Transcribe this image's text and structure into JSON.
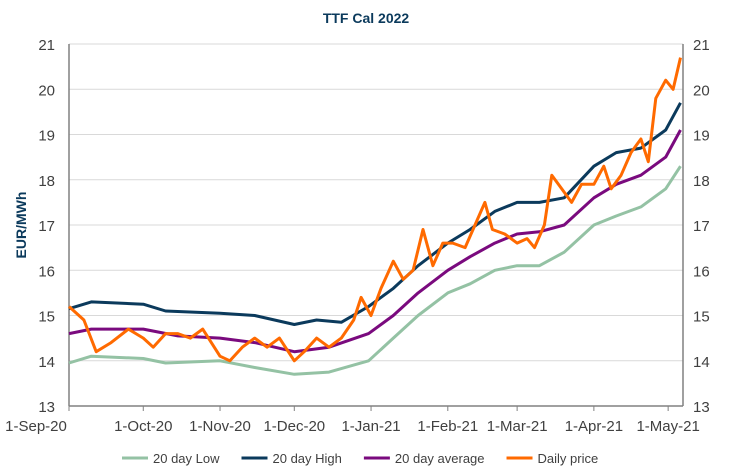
{
  "chart_data": {
    "type": "line",
    "title": "TTF Cal 2022",
    "ylabel": "EUR/MWh",
    "ylim": [
      13,
      21
    ],
    "yticks": [
      13,
      14,
      15,
      16,
      17,
      18,
      19,
      20,
      21
    ],
    "xlim": [
      "2020-09-01",
      "2021-05-07"
    ],
    "xticks": [
      {
        "date": "2020-09-01",
        "label": "1-Sep-20"
      },
      {
        "date": "2020-10-01",
        "label": "1-Oct-20"
      },
      {
        "date": "2020-11-01",
        "label": "1-Nov-20"
      },
      {
        "date": "2020-12-01",
        "label": "1-Dec-20"
      },
      {
        "date": "2021-01-01",
        "label": "1-Jan-21"
      },
      {
        "date": "2021-02-01",
        "label": "1-Feb-21"
      },
      {
        "date": "2021-03-01",
        "label": "1-Mar-21"
      },
      {
        "date": "2021-04-01",
        "label": "1-Apr-21"
      },
      {
        "date": "2021-05-01",
        "label": "1-May-21"
      }
    ],
    "grid": true,
    "legend": "bottom",
    "series": [
      {
        "name": "20 day Low",
        "color": "#94c2a4",
        "points": [
          [
            "2020-09-01",
            13.95
          ],
          [
            "2020-09-10",
            14.1
          ],
          [
            "2020-10-01",
            14.05
          ],
          [
            "2020-10-10",
            13.95
          ],
          [
            "2020-11-01",
            14.0
          ],
          [
            "2020-11-15",
            13.85
          ],
          [
            "2020-12-01",
            13.7
          ],
          [
            "2020-12-15",
            13.75
          ],
          [
            "2020-12-31",
            14.0
          ],
          [
            "2021-01-10",
            14.5
          ],
          [
            "2021-01-20",
            15.0
          ],
          [
            "2021-02-01",
            15.5
          ],
          [
            "2021-02-10",
            15.7
          ],
          [
            "2021-02-20",
            16.0
          ],
          [
            "2021-03-01",
            16.1
          ],
          [
            "2021-03-10",
            16.1
          ],
          [
            "2021-03-20",
            16.4
          ],
          [
            "2021-04-01",
            17.0
          ],
          [
            "2021-04-10",
            17.2
          ],
          [
            "2021-04-20",
            17.4
          ],
          [
            "2021-04-30",
            17.8
          ],
          [
            "2021-05-06",
            18.3
          ]
        ]
      },
      {
        "name": "20 day High",
        "color": "#0b3a5c",
        "points": [
          [
            "2020-09-01",
            15.15
          ],
          [
            "2020-09-10",
            15.3
          ],
          [
            "2020-10-01",
            15.25
          ],
          [
            "2020-10-10",
            15.1
          ],
          [
            "2020-11-01",
            15.05
          ],
          [
            "2020-11-15",
            15.0
          ],
          [
            "2020-12-01",
            14.8
          ],
          [
            "2020-12-10",
            14.9
          ],
          [
            "2020-12-20",
            14.85
          ],
          [
            "2020-12-31",
            15.2
          ],
          [
            "2021-01-10",
            15.6
          ],
          [
            "2021-01-20",
            16.1
          ],
          [
            "2021-02-01",
            16.6
          ],
          [
            "2021-02-10",
            16.9
          ],
          [
            "2021-02-20",
            17.3
          ],
          [
            "2021-03-01",
            17.5
          ],
          [
            "2021-03-10",
            17.5
          ],
          [
            "2021-03-20",
            17.6
          ],
          [
            "2021-04-01",
            18.3
          ],
          [
            "2021-04-10",
            18.6
          ],
          [
            "2021-04-20",
            18.7
          ],
          [
            "2021-04-30",
            19.1
          ],
          [
            "2021-05-06",
            19.7
          ]
        ]
      },
      {
        "name": "20 day average",
        "color": "#7a0a7e",
        "points": [
          [
            "2020-09-01",
            14.6
          ],
          [
            "2020-09-10",
            14.7
          ],
          [
            "2020-10-01",
            14.7
          ],
          [
            "2020-10-15",
            14.55
          ],
          [
            "2020-11-01",
            14.5
          ],
          [
            "2020-11-15",
            14.4
          ],
          [
            "2020-12-01",
            14.2
          ],
          [
            "2020-12-15",
            14.3
          ],
          [
            "2020-12-31",
            14.6
          ],
          [
            "2021-01-10",
            15.0
          ],
          [
            "2021-01-20",
            15.5
          ],
          [
            "2021-02-01",
            16.0
          ],
          [
            "2021-02-10",
            16.3
          ],
          [
            "2021-02-20",
            16.6
          ],
          [
            "2021-03-01",
            16.8
          ],
          [
            "2021-03-10",
            16.85
          ],
          [
            "2021-03-20",
            17.0
          ],
          [
            "2021-04-01",
            17.6
          ],
          [
            "2021-04-10",
            17.9
          ],
          [
            "2021-04-20",
            18.1
          ],
          [
            "2021-04-30",
            18.5
          ],
          [
            "2021-05-06",
            19.1
          ]
        ]
      },
      {
        "name": "Daily price",
        "color": "#ff6a00",
        "points": [
          [
            "2020-09-01",
            15.2
          ],
          [
            "2020-09-07",
            14.9
          ],
          [
            "2020-09-12",
            14.2
          ],
          [
            "2020-09-18",
            14.4
          ],
          [
            "2020-09-25",
            14.7
          ],
          [
            "2020-10-01",
            14.5
          ],
          [
            "2020-10-05",
            14.3
          ],
          [
            "2020-10-10",
            14.6
          ],
          [
            "2020-10-15",
            14.6
          ],
          [
            "2020-10-20",
            14.5
          ],
          [
            "2020-10-25",
            14.7
          ],
          [
            "2020-11-01",
            14.1
          ],
          [
            "2020-11-05",
            14.0
          ],
          [
            "2020-11-10",
            14.3
          ],
          [
            "2020-11-15",
            14.5
          ],
          [
            "2020-11-20",
            14.3
          ],
          [
            "2020-11-25",
            14.5
          ],
          [
            "2020-12-01",
            14.0
          ],
          [
            "2020-12-05",
            14.2
          ],
          [
            "2020-12-10",
            14.5
          ],
          [
            "2020-12-15",
            14.3
          ],
          [
            "2020-12-20",
            14.5
          ],
          [
            "2020-12-25",
            14.9
          ],
          [
            "2020-12-28",
            15.4
          ],
          [
            "2021-01-01",
            15.0
          ],
          [
            "2021-01-05",
            15.6
          ],
          [
            "2021-01-10",
            16.2
          ],
          [
            "2021-01-14",
            15.8
          ],
          [
            "2021-01-18",
            16.0
          ],
          [
            "2021-01-22",
            16.9
          ],
          [
            "2021-01-26",
            16.1
          ],
          [
            "2021-01-30",
            16.6
          ],
          [
            "2021-02-03",
            16.6
          ],
          [
            "2021-02-08",
            16.5
          ],
          [
            "2021-02-12",
            17.0
          ],
          [
            "2021-02-16",
            17.5
          ],
          [
            "2021-02-19",
            16.9
          ],
          [
            "2021-02-24",
            16.8
          ],
          [
            "2021-03-01",
            16.6
          ],
          [
            "2021-03-05",
            16.7
          ],
          [
            "2021-03-08",
            16.5
          ],
          [
            "2021-03-12",
            17.0
          ],
          [
            "2021-03-15",
            18.1
          ],
          [
            "2021-03-19",
            17.8
          ],
          [
            "2021-03-23",
            17.5
          ],
          [
            "2021-03-27",
            17.9
          ],
          [
            "2021-04-01",
            17.9
          ],
          [
            "2021-04-05",
            18.3
          ],
          [
            "2021-04-08",
            17.8
          ],
          [
            "2021-04-12",
            18.1
          ],
          [
            "2021-04-16",
            18.6
          ],
          [
            "2021-04-20",
            18.9
          ],
          [
            "2021-04-23",
            18.4
          ],
          [
            "2021-04-26",
            19.8
          ],
          [
            "2021-04-30",
            20.2
          ],
          [
            "2021-05-03",
            20.0
          ],
          [
            "2021-05-06",
            20.7
          ]
        ]
      }
    ]
  }
}
